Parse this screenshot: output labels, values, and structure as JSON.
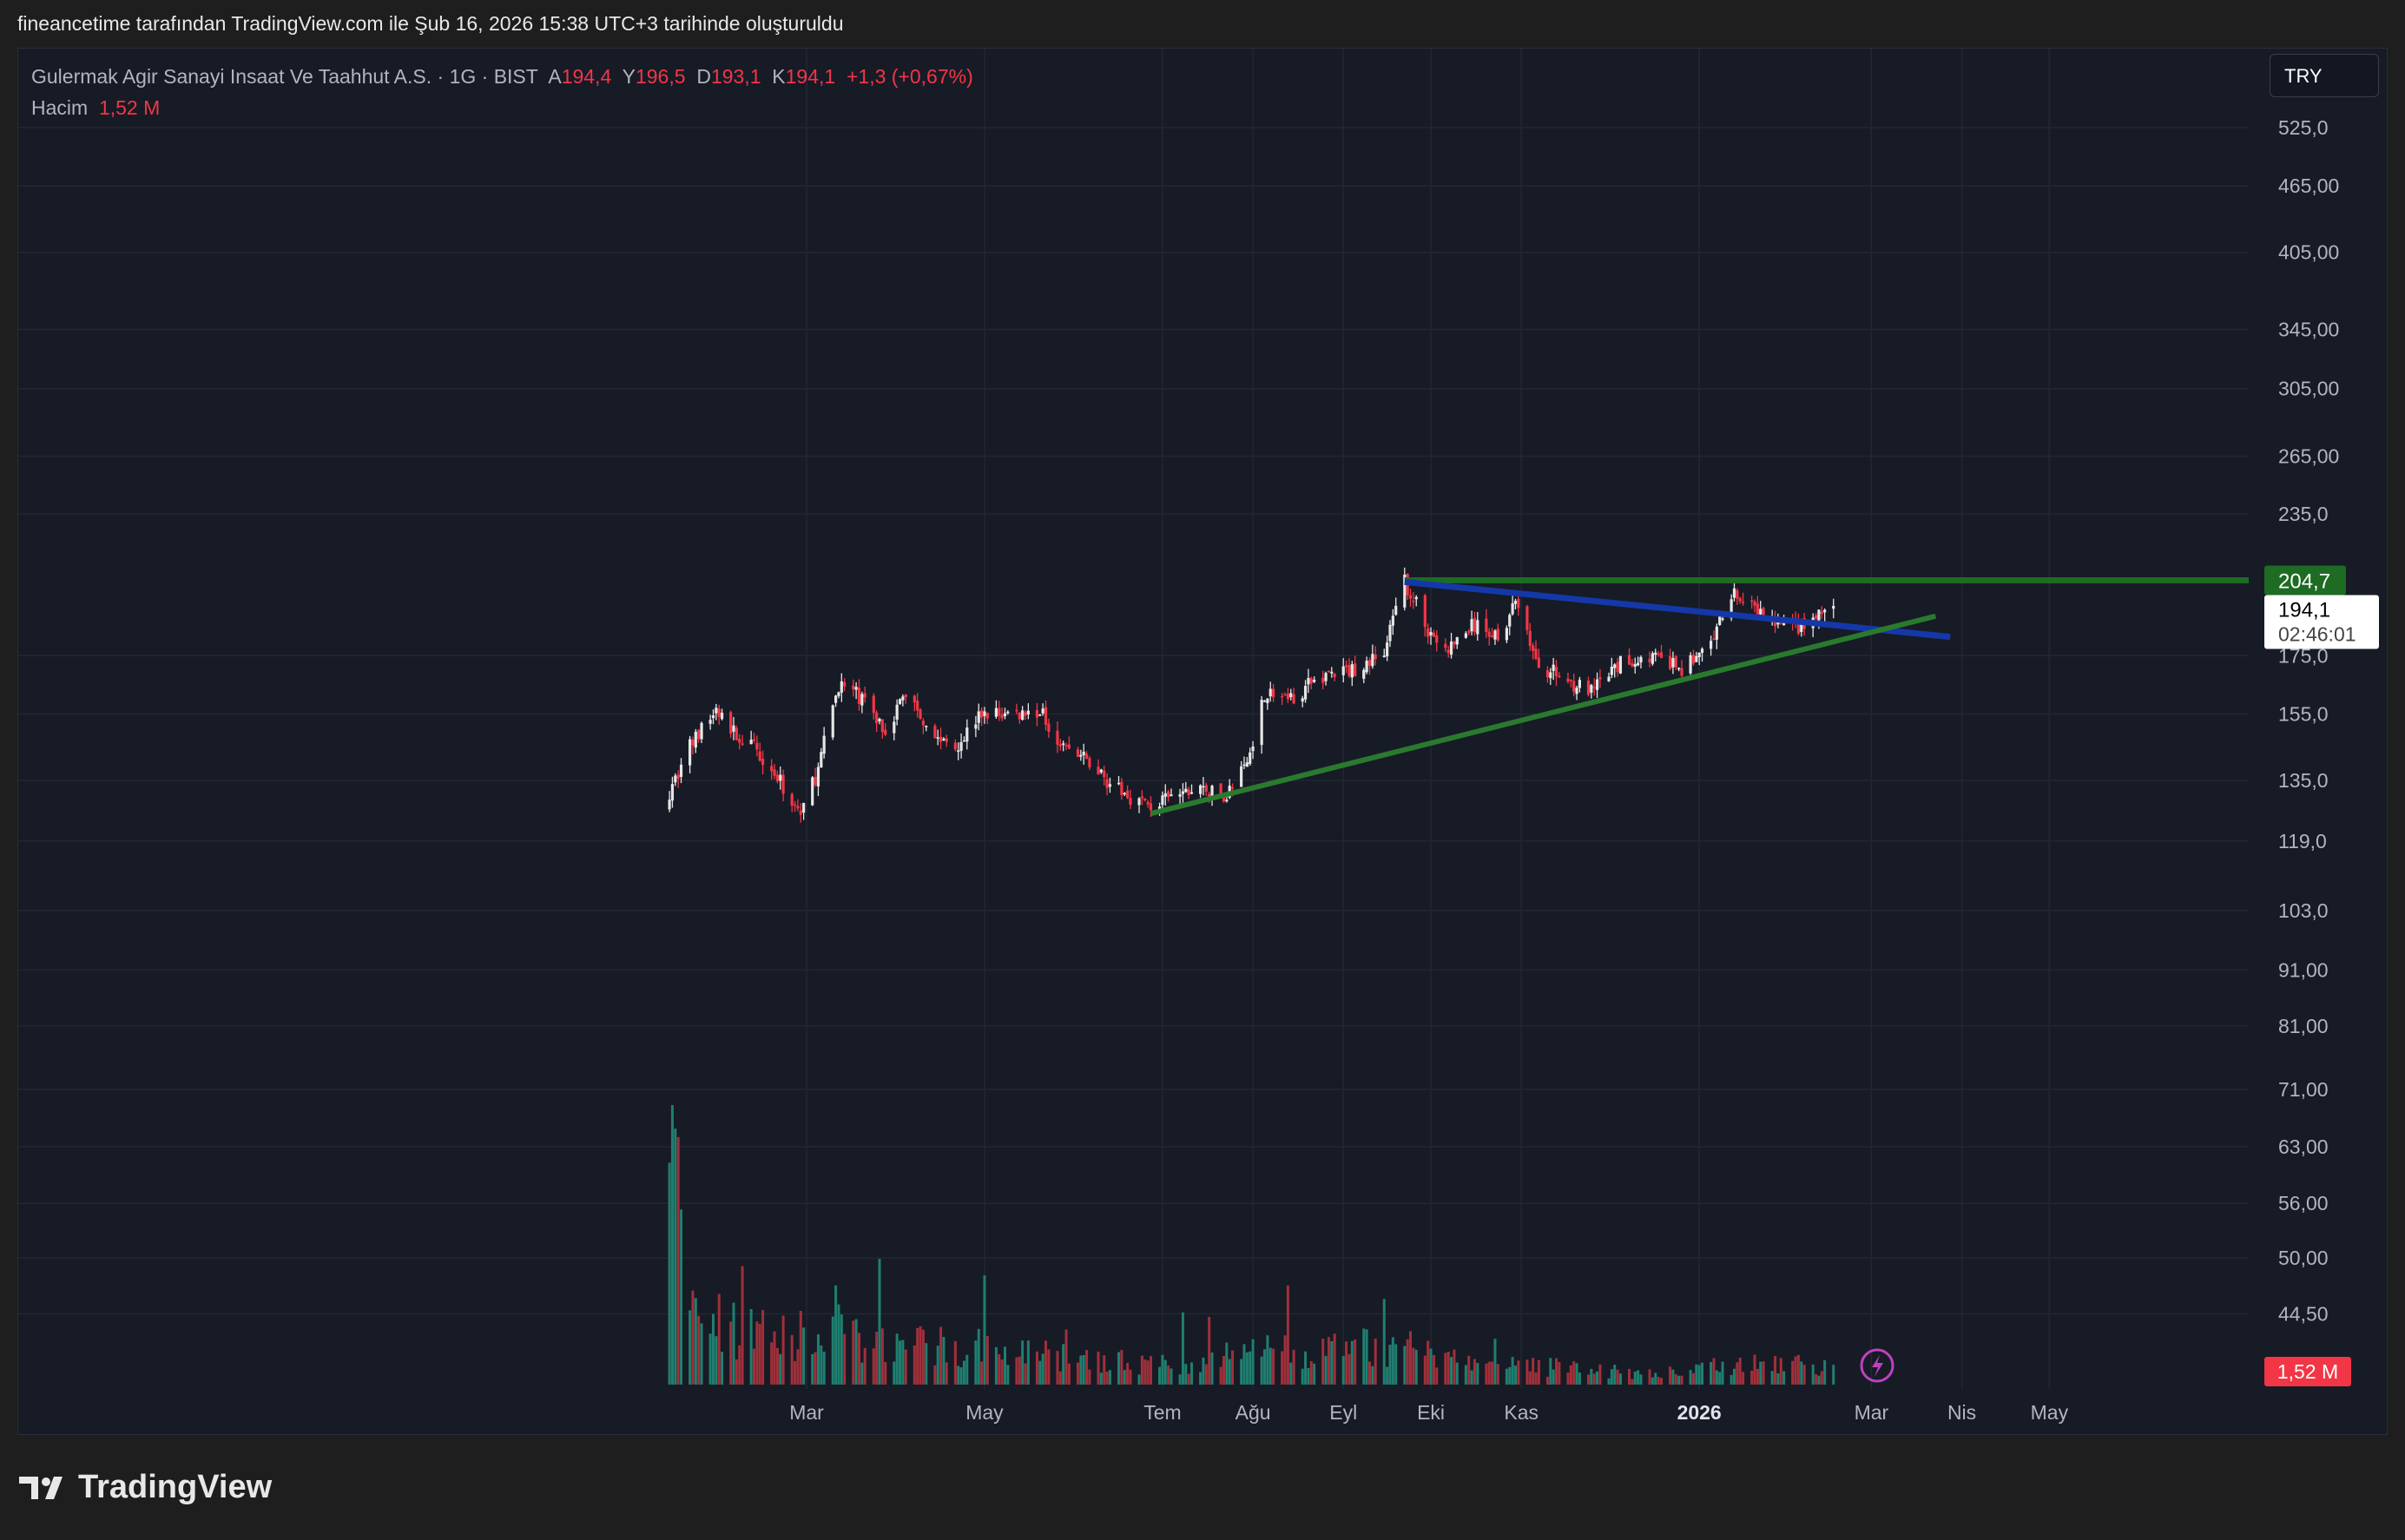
{
  "header": {
    "created_line": "fineancetime tarafından TradingView.com ile Şub 16, 2026 15:38 UTC+3 tarihinde oluşturuldu"
  },
  "legend": {
    "title": "Gulermak Agir Sanayi Insaat Ve Taahhut A.S. · 1G · BIST",
    "open_label": "A",
    "open": "194,4",
    "high_label": "Y",
    "high": "196,5",
    "low_label": "D",
    "low": "193,1",
    "close_label": "K",
    "close": "194,1",
    "change": "+1,3 (+0,67%)",
    "volume_label": "Hacim",
    "volume": "1,52 M"
  },
  "currency_button": "TRY",
  "footer": {
    "brand": "TradingView"
  },
  "colors": {
    "up": "#e6e6e6",
    "down": "#f23645",
    "vol_up": "#1f7f70",
    "vol_down": "#a1303a",
    "resistance": "#1e6b23",
    "blue_line": "#1538a8",
    "support": "#2a7a2e"
  },
  "chart_data": {
    "type": "candlestick",
    "scale": "log",
    "price_ticks": [
      "525,0",
      "465,00",
      "405,00",
      "345,00",
      "305,00",
      "265,00",
      "235,0",
      "175,0",
      "155,0",
      "135,0",
      "119,0",
      "103,0",
      "91,00",
      "81,00",
      "71,00",
      "63,00",
      "56,00",
      "50,00",
      "44,50"
    ],
    "price_tick_values": [
      525,
      465,
      405,
      345,
      305,
      265,
      235,
      175,
      155,
      135,
      119,
      103,
      91,
      81,
      71,
      63,
      56,
      50,
      44.5
    ],
    "time_ticks": [
      {
        "label": "Mar",
        "date": "2025-03-01"
      },
      {
        "label": "May",
        "date": "2025-05-01"
      },
      {
        "label": "Tem",
        "date": "2025-07-01"
      },
      {
        "label": "Ağu",
        "date": "2025-08-01"
      },
      {
        "label": "Eyl",
        "date": "2025-09-01"
      },
      {
        "label": "Eki",
        "date": "2025-10-01"
      },
      {
        "label": "Kas",
        "date": "2025-11-01"
      },
      {
        "label": "2026",
        "date": "2026-01-01",
        "bold": true
      },
      {
        "label": "Mar",
        "date": "2026-03-01"
      },
      {
        "label": "Nis",
        "date": "2026-04-01"
      },
      {
        "label": "May",
        "date": "2026-05-01"
      }
    ],
    "close_waypoints": [
      [
        "2025-01-13",
        132
      ],
      [
        "2025-01-20",
        145
      ],
      [
        "2025-01-29",
        156
      ],
      [
        "2025-02-05",
        148
      ],
      [
        "2025-02-13",
        143
      ],
      [
        "2025-02-21",
        133
      ],
      [
        "2025-02-27",
        126
      ],
      [
        "2025-03-05",
        138
      ],
      [
        "2025-03-12",
        165
      ],
      [
        "2025-03-20",
        160
      ],
      [
        "2025-03-28",
        150
      ],
      [
        "2025-04-04",
        162
      ],
      [
        "2025-04-15",
        147
      ],
      [
        "2025-04-22",
        146
      ],
      [
        "2025-04-30",
        155
      ],
      [
        "2025-05-09",
        155
      ],
      [
        "2025-05-20",
        156
      ],
      [
        "2025-05-28",
        145
      ],
      [
        "2025-06-06",
        140
      ],
      [
        "2025-06-16",
        132
      ],
      [
        "2025-06-27",
        128
      ],
      [
        "2025-07-04",
        130
      ],
      [
        "2025-07-14",
        133
      ],
      [
        "2025-07-22",
        130
      ],
      [
        "2025-07-30",
        140
      ],
      [
        "2025-08-05",
        162
      ],
      [
        "2025-08-14",
        160
      ],
      [
        "2025-08-25",
        168
      ],
      [
        "2025-09-05",
        170
      ],
      [
        "2025-09-15",
        176
      ],
      [
        "2025-09-22",
        204
      ],
      [
        "2025-09-30",
        185
      ],
      [
        "2025-10-06",
        176
      ],
      [
        "2025-10-15",
        186
      ],
      [
        "2025-10-24",
        183
      ],
      [
        "2025-10-31",
        196
      ],
      [
        "2025-11-06",
        172
      ],
      [
        "2025-11-14",
        168
      ],
      [
        "2025-11-25",
        162
      ],
      [
        "2025-12-05",
        172
      ],
      [
        "2025-12-15",
        175
      ],
      [
        "2025-12-26",
        170
      ],
      [
        "2026-01-06",
        180
      ],
      [
        "2026-01-12",
        200
      ],
      [
        "2026-01-20",
        192
      ],
      [
        "2026-01-29",
        186
      ],
      [
        "2026-02-06",
        186
      ],
      [
        "2026-02-16",
        194.1
      ]
    ],
    "volume_waypoints_millions": [
      [
        "2025-01-13",
        25
      ],
      [
        "2025-01-15",
        16
      ],
      [
        "2025-01-20",
        7
      ],
      [
        "2025-02-01",
        4.5
      ],
      [
        "2025-02-20",
        3.5
      ],
      [
        "2025-03-10",
        4.5
      ],
      [
        "2025-03-20",
        3
      ],
      [
        "2025-04-10",
        3
      ],
      [
        "2025-05-01",
        2.8
      ],
      [
        "2025-06-01",
        2
      ],
      [
        "2025-07-01",
        1.5
      ],
      [
        "2025-08-01",
        2.5
      ],
      [
        "2025-08-20",
        2.5
      ],
      [
        "2025-09-20",
        3
      ],
      [
        "2025-10-15",
        1.5
      ],
      [
        "2025-11-15",
        1.3
      ],
      [
        "2025-12-15",
        0.8
      ],
      [
        "2026-01-12",
        1.5
      ],
      [
        "2026-02-16",
        1.52
      ]
    ],
    "price_labels": {
      "resistance": "204,7",
      "last": "194,1",
      "countdown": "02:46:01",
      "volume_last": "1,52 M"
    },
    "drawings": [
      {
        "name": "resistance-line",
        "from": [
          "2025-09-22",
          204.7
        ],
        "to": "extends right",
        "color": "#1e6b23"
      },
      {
        "name": "descending-trendline",
        "from": [
          "2025-09-22",
          204
        ],
        "to": [
          "2026-03-28",
          182
        ]
      },
      {
        "name": "ascending-trendline",
        "from": [
          "2025-06-27",
          126
        ],
        "to": [
          "2026-03-23",
          190
        ]
      }
    ]
  }
}
